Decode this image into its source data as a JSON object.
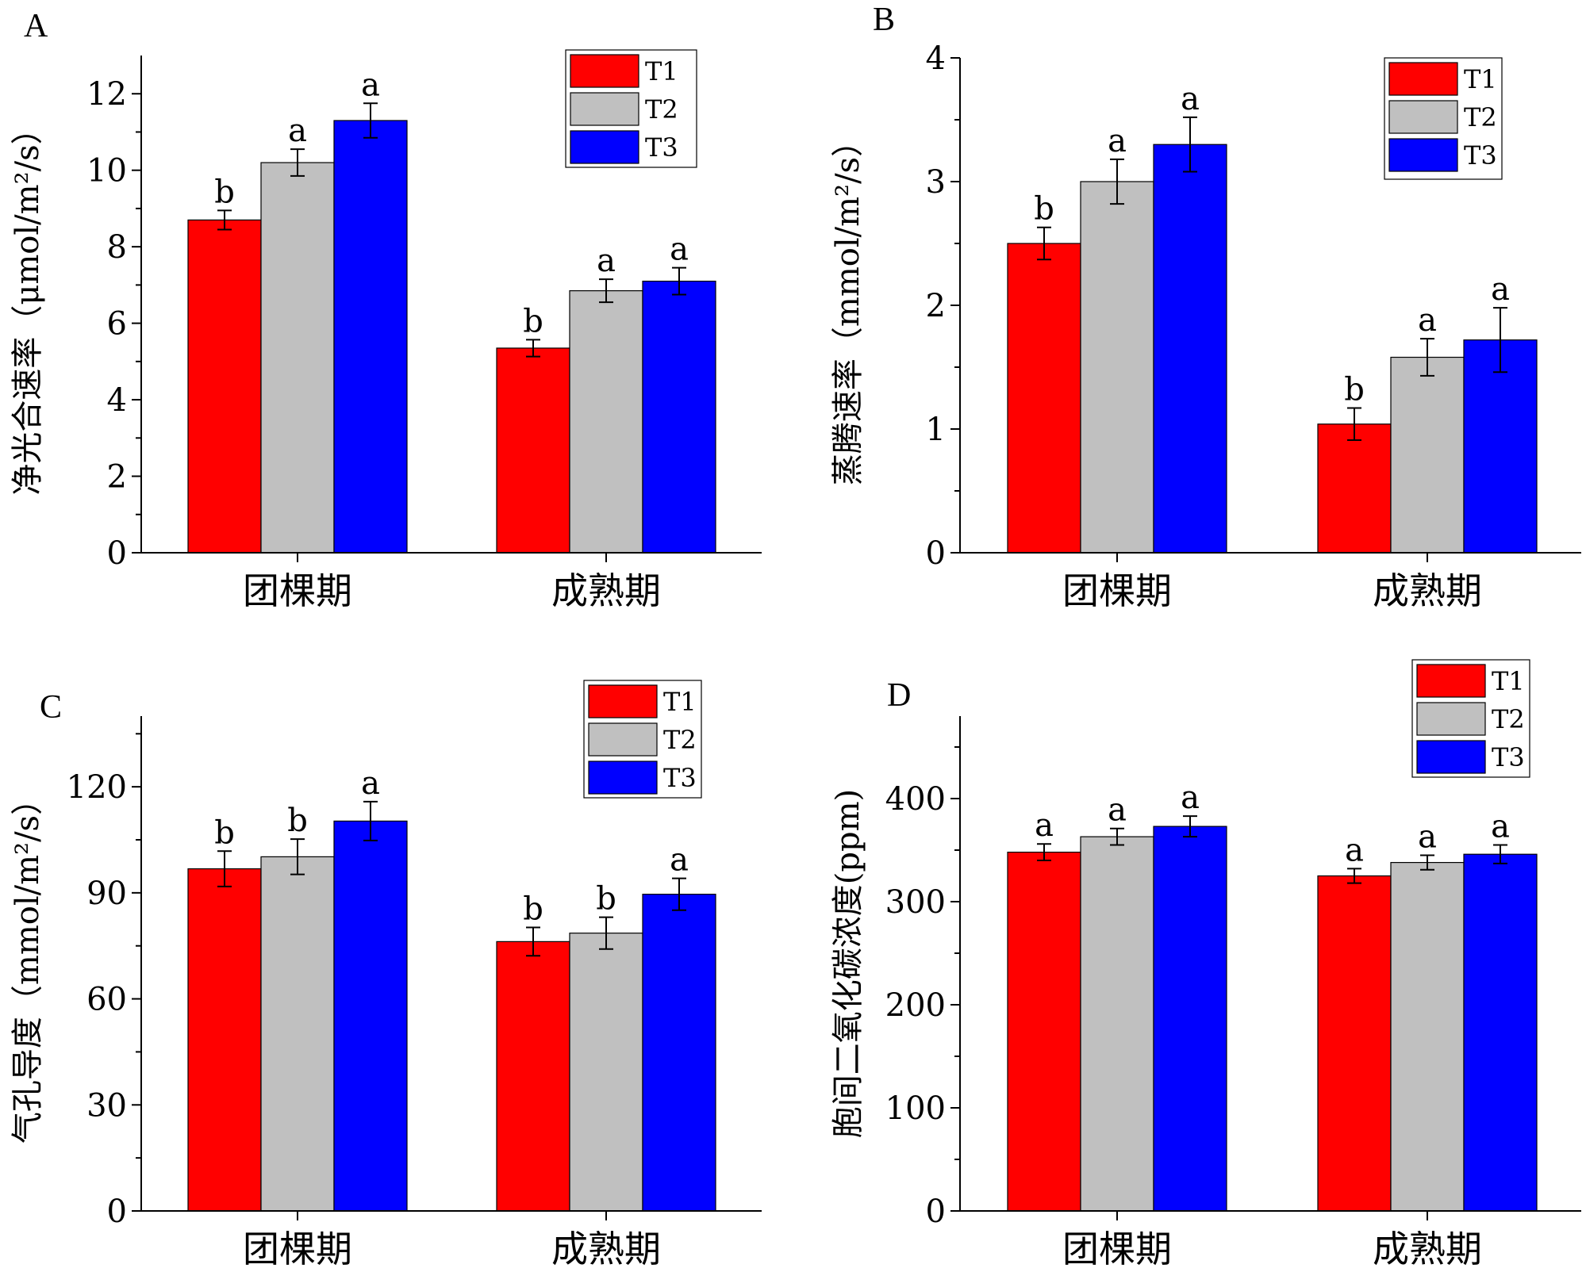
{
  "chart_data": [
    {
      "panel": "A",
      "type": "bar",
      "categories": [
        "团棵期",
        "成熟期"
      ],
      "ylabel": "净光合速率（μmol/m²/s）",
      "ylim": [
        0,
        13
      ],
      "yticks": [
        0,
        2,
        4,
        6,
        8,
        10,
        12
      ],
      "legend": "top-right",
      "series": [
        {
          "name": "T1",
          "color": "#ff0000",
          "values": [
            8.7,
            5.35
          ],
          "errors": [
            0.25,
            0.22
          ],
          "labels": [
            "b",
            "b"
          ]
        },
        {
          "name": "T2",
          "color": "#c0c0c0",
          "values": [
            10.2,
            6.85
          ],
          "errors": [
            0.35,
            0.3
          ],
          "labels": [
            "a",
            "a"
          ]
        },
        {
          "name": "T3",
          "color": "#0000ff",
          "values": [
            11.3,
            7.1
          ],
          "errors": [
            0.45,
            0.35
          ],
          "labels": [
            "a",
            "a"
          ]
        }
      ]
    },
    {
      "panel": "B",
      "type": "bar",
      "categories": [
        "团棵期",
        "成熟期"
      ],
      "ylabel": "蒸腾速率（mmol/m²/s）",
      "ylim": [
        0,
        4
      ],
      "yticks": [
        0,
        1,
        2,
        3,
        4
      ],
      "legend": "top-right",
      "series": [
        {
          "name": "T1",
          "color": "#ff0000",
          "values": [
            2.5,
            1.04
          ],
          "errors": [
            0.13,
            0.13
          ],
          "labels": [
            "b",
            "b"
          ]
        },
        {
          "name": "T2",
          "color": "#c0c0c0",
          "values": [
            3.0,
            1.58
          ],
          "errors": [
            0.18,
            0.15
          ],
          "labels": [
            "a",
            "a"
          ]
        },
        {
          "name": "T3",
          "color": "#0000ff",
          "values": [
            3.3,
            1.72
          ],
          "errors": [
            0.22,
            0.26
          ],
          "labels": [
            "a",
            "a"
          ]
        }
      ]
    },
    {
      "panel": "C",
      "type": "bar",
      "categories": [
        "团棵期",
        "成熟期"
      ],
      "ylabel": "气孔导度（mmol/m²/s）",
      "ylim": [
        0,
        140
      ],
      "yticks": [
        0,
        30,
        60,
        90,
        120
      ],
      "legend": "top-right",
      "series": [
        {
          "name": "T1",
          "color": "#ff0000",
          "values": [
            96.8,
            76.2
          ],
          "errors": [
            5.0,
            4.0
          ],
          "labels": [
            "b",
            "b"
          ]
        },
        {
          "name": "T2",
          "color": "#c0c0c0",
          "values": [
            100.2,
            78.6
          ],
          "errors": [
            5.0,
            4.5
          ],
          "labels": [
            "b",
            "b"
          ]
        },
        {
          "name": "T3",
          "color": "#0000ff",
          "values": [
            110.3,
            89.6
          ],
          "errors": [
            5.5,
            4.5
          ],
          "labels": [
            "a",
            "a"
          ]
        }
      ]
    },
    {
      "panel": "D",
      "type": "bar",
      "categories": [
        "团棵期",
        "成熟期"
      ],
      "ylabel": "胞间二氧化碳浓度(ppm)",
      "ylim": [
        0,
        480
      ],
      "yticks": [
        0,
        100,
        200,
        300,
        400
      ],
      "legend": "top-right",
      "series": [
        {
          "name": "T1",
          "color": "#ff0000",
          "values": [
            348,
            325
          ],
          "errors": [
            8,
            7
          ],
          "labels": [
            "a",
            "a"
          ]
        },
        {
          "name": "T2",
          "color": "#c0c0c0",
          "values": [
            363,
            338
          ],
          "errors": [
            8,
            7
          ],
          "labels": [
            "a",
            "a"
          ]
        },
        {
          "name": "T3",
          "color": "#0000ff",
          "values": [
            373,
            346
          ],
          "errors": [
            10,
            9
          ],
          "labels": [
            "a",
            "a"
          ]
        }
      ]
    }
  ]
}
